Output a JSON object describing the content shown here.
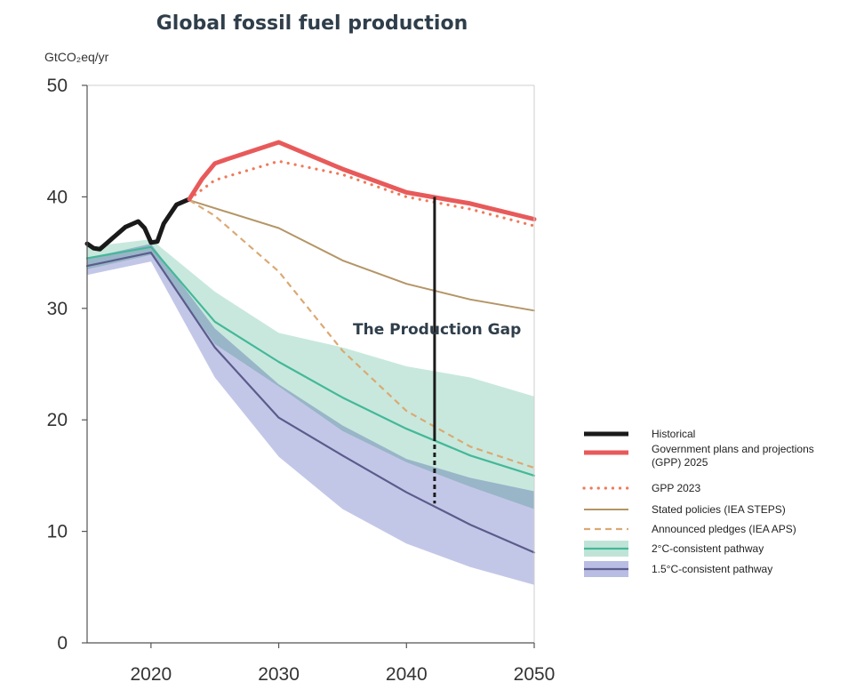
{
  "chart_data": {
    "type": "line",
    "title": "Global fossil fuel production",
    "ylabel": "GtCO₂eq/yr",
    "xlabel": "",
    "xlim": [
      2015,
      2050
    ],
    "ylim": [
      0,
      50
    ],
    "x_ticks": [
      "2020",
      "2030",
      "2040",
      "2050"
    ],
    "y_ticks": [
      "0",
      "10",
      "20",
      "30",
      "40",
      "50"
    ],
    "grid": false,
    "legend_position": "right",
    "annotation": {
      "text": "The Production Gap",
      "year": 2042.2,
      "from": 12.5,
      "to": 40.0,
      "dashed_below": 18.5
    },
    "series": [
      {
        "name": "Historical",
        "style": "solid-thick",
        "color": "#1a1a1a",
        "x": [
          2015,
          2015.5,
          2016,
          2017,
          2018,
          2019,
          2019.5,
          2020,
          2020.5,
          2021,
          2022,
          2023
        ],
        "y": [
          35.8,
          35.4,
          35.3,
          36.3,
          37.3,
          37.8,
          37.2,
          35.9,
          36.0,
          37.6,
          39.3,
          39.8
        ]
      },
      {
        "name": "Government plans and projections (GPP) 2025",
        "style": "solid-thick",
        "color": "#e85a5a",
        "x": [
          2023,
          2024,
          2025,
          2026,
          2030,
          2035,
          2040,
          2045,
          2050
        ],
        "y": [
          39.8,
          41.6,
          43.0,
          43.4,
          44.9,
          42.5,
          40.4,
          39.4,
          38.0
        ]
      },
      {
        "name": "GPP 2023",
        "style": "dotted",
        "color": "#ef7a5a",
        "x": [
          2023,
          2025,
          2030,
          2035,
          2040,
          2045,
          2050
        ],
        "y": [
          39.8,
          41.5,
          43.2,
          42.0,
          40.0,
          38.9,
          37.4
        ]
      },
      {
        "name": "Stated policies (IEA STEPS)",
        "style": "solid",
        "color": "#b49566",
        "x": [
          2023,
          2030,
          2035,
          2040,
          2045,
          2050
        ],
        "y": [
          39.7,
          37.2,
          34.3,
          32.2,
          30.8,
          29.8
        ]
      },
      {
        "name": "Announced pledges (IEA APS)",
        "style": "dashed",
        "color": "#dba974",
        "x": [
          2023,
          2025,
          2030,
          2035,
          2040,
          2045,
          2050
        ],
        "y": [
          39.7,
          38.3,
          33.3,
          26.2,
          20.8,
          17.6,
          15.7
        ]
      },
      {
        "name": "2°C-consistent pathway",
        "style": "band",
        "color": "#44b898",
        "band_color": "#bfe4d7",
        "x": [
          2015,
          2020,
          2025,
          2030,
          2035,
          2040,
          2045,
          2050
        ],
        "y": [
          34.5,
          35.5,
          28.8,
          25.2,
          22.0,
          19.2,
          16.8,
          15.0
        ],
        "upper": [
          35.5,
          36.2,
          31.5,
          27.8,
          26.5,
          24.8,
          23.8,
          22.1
        ],
        "lower": [
          33.5,
          34.8,
          26.8,
          23.0,
          19.0,
          16.2,
          14.0,
          12.0
        ]
      },
      {
        "name": "1.5°C-consistent pathway",
        "style": "band",
        "color": "#5b5c8c",
        "band_color": "#b9bde3",
        "x": [
          2015,
          2020,
          2025,
          2030,
          2035,
          2040,
          2045,
          2050
        ],
        "y": [
          33.8,
          35.0,
          26.5,
          20.2,
          16.8,
          13.5,
          10.6,
          8.1
        ],
        "upper": [
          34.5,
          35.8,
          28.2,
          23.2,
          19.5,
          16.5,
          14.8,
          13.6
        ],
        "lower": [
          33.0,
          34.2,
          23.8,
          16.7,
          12.0,
          8.9,
          6.8,
          5.2
        ]
      }
    ]
  }
}
